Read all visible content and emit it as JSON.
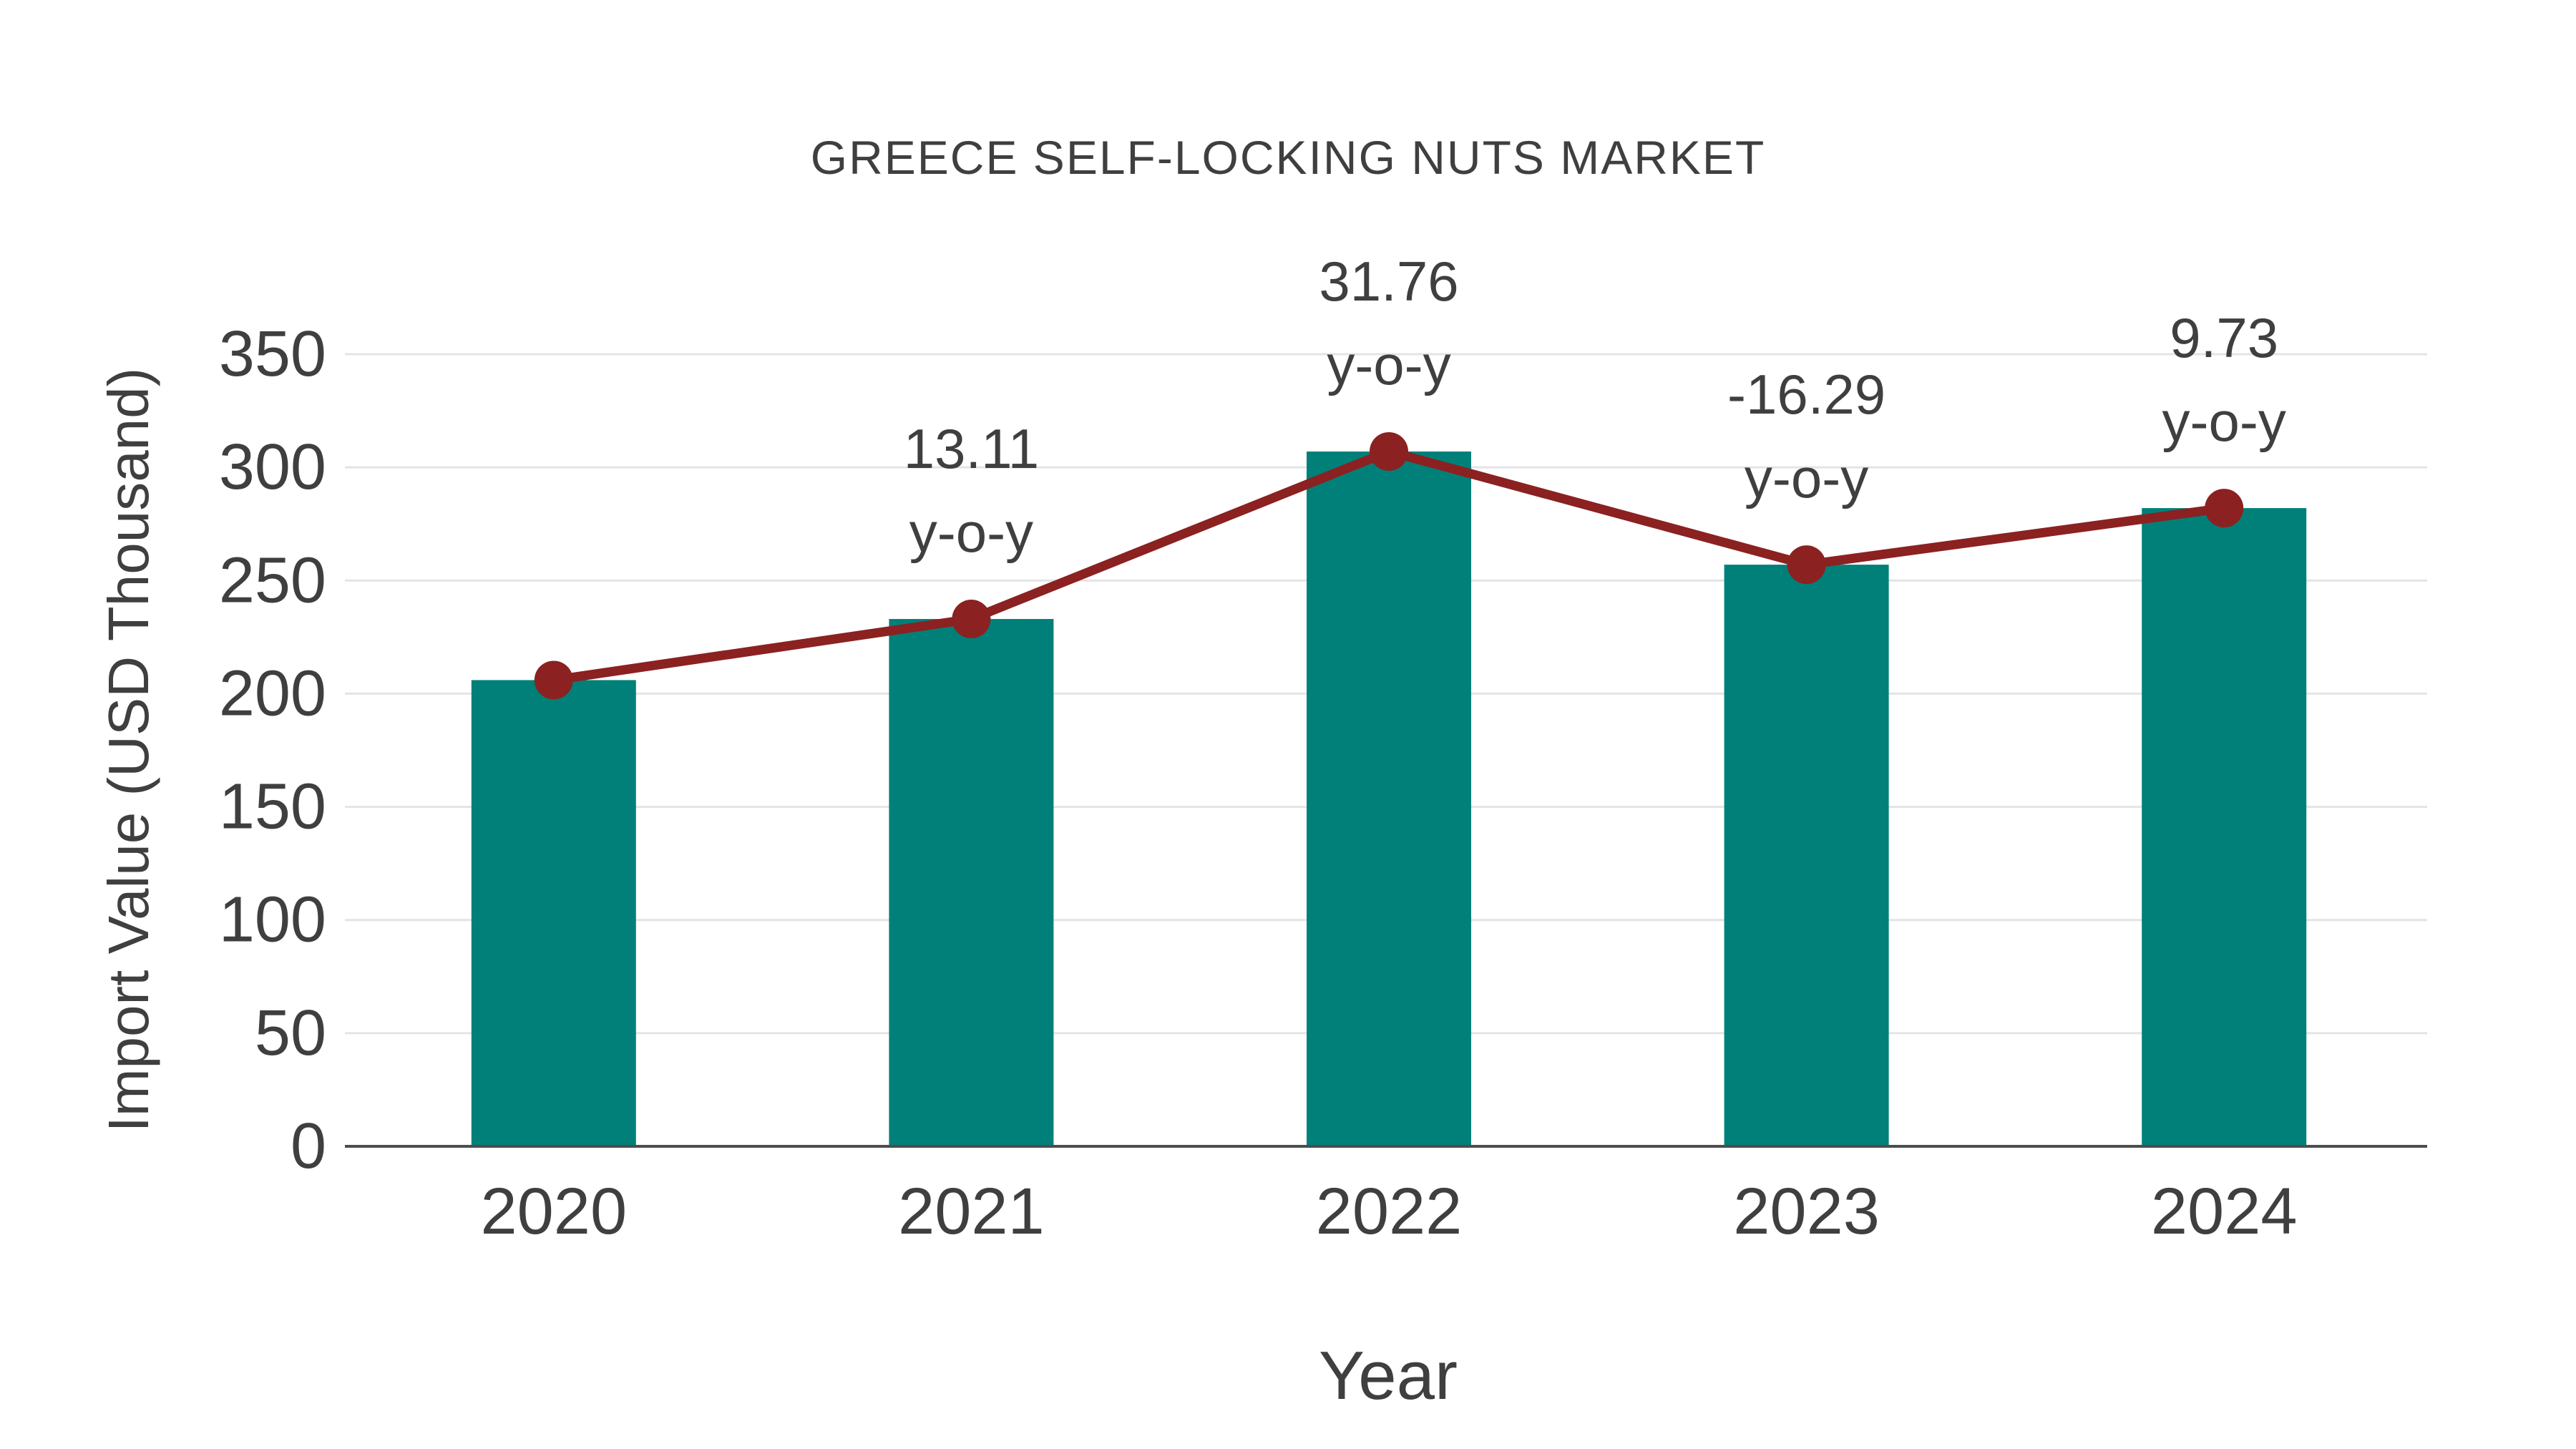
{
  "title": "GREECE SELF-LOCKING NUTS MARKET",
  "chart_data": {
    "type": "bar",
    "title": "GREECE SELF-LOCKING NUTS MARKET",
    "xlabel": "Year",
    "ylabel": "Import Value (USD Thousand)",
    "categories": [
      "2020",
      "2021",
      "2022",
      "2023",
      "2024"
    ],
    "series": [
      {
        "name": "Import Value",
        "type": "bar",
        "values": [
          206,
          233,
          307,
          257,
          282
        ]
      },
      {
        "name": "y-o-y growth",
        "type": "line",
        "values": [
          206,
          233,
          307,
          257,
          282
        ],
        "point_labels": [
          "",
          "13.11",
          "31.76",
          "-16.29",
          "9.73"
        ],
        "label_suffix": "y-o-y"
      }
    ],
    "ylim": [
      0,
      350
    ],
    "yticks": [
      0,
      50,
      100,
      150,
      200,
      250,
      300,
      350
    ],
    "grid": "horizontal",
    "legend_position": "none",
    "colors": {
      "bar": "#008079",
      "line": "#8B2121",
      "marker": "#8B2121",
      "grid": "#e4e4e4",
      "axis": "#4d4d4d",
      "text": "#3f3f3f"
    }
  }
}
